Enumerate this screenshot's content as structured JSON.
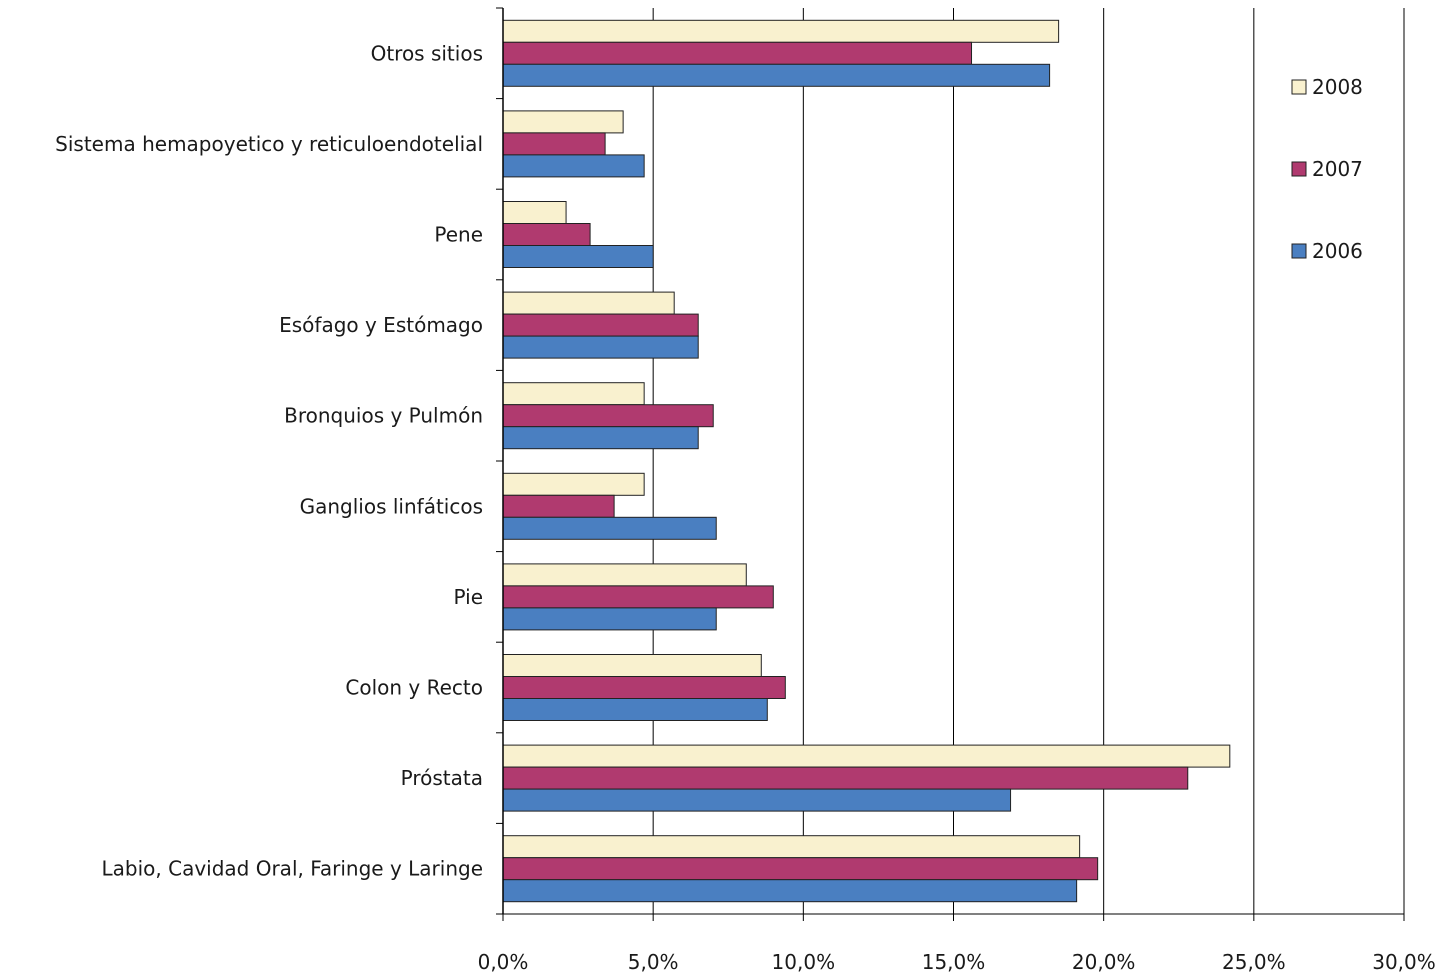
{
  "chart_data": {
    "type": "bar",
    "orientation": "horizontal",
    "categories": [
      "Otros sitios",
      "Sistema hemapoyetico y reticuloendotelial",
      "Pene",
      "Esófago y Estómago",
      "Bronquios y Pulmón",
      "Ganglios linfáticos",
      "Pie",
      "Colon y Recto",
      "Próstata",
      "Labio, Cavidad Oral, Faringe y Laringe"
    ],
    "series": [
      {
        "name": "2008",
        "color": "#f9f1cf",
        "values": [
          18.5,
          4.0,
          2.1,
          5.7,
          4.7,
          4.7,
          8.1,
          8.6,
          24.2,
          19.2
        ]
      },
      {
        "name": "2007",
        "color": "#b03a6f",
        "values": [
          15.6,
          3.4,
          2.9,
          6.5,
          7.0,
          3.7,
          9.0,
          9.4,
          22.8,
          19.8
        ]
      },
      {
        "name": "2006",
        "color": "#4a7fc1",
        "values": [
          18.2,
          4.7,
          5.0,
          6.5,
          6.5,
          7.1,
          7.1,
          8.8,
          16.9,
          19.1
        ]
      }
    ],
    "xlim": [
      0,
      30
    ],
    "xticks": [
      "0,0%",
      "5,0%",
      "10,0%",
      "15,0%",
      "20,0%",
      "25,0%",
      "30,0%"
    ],
    "grid": true,
    "legend_position": "right"
  }
}
